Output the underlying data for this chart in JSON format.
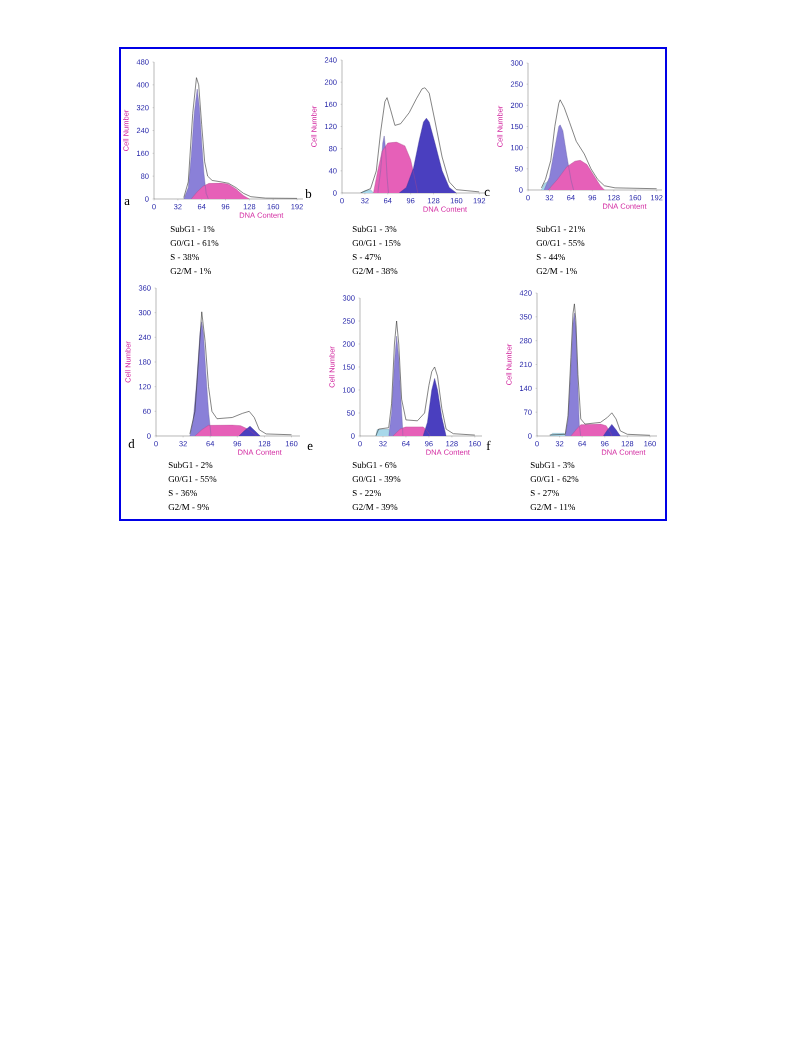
{
  "chart_data": [
    {
      "type": "area",
      "xlabel": "DNA Content",
      "ylabel": "Cell Number",
      "xlim": [
        0,
        200
      ],
      "xticks": [
        0,
        32,
        64,
        96,
        128,
        160,
        192
      ],
      "ylim": [
        0,
        480
      ],
      "yticks": [
        0,
        80,
        160,
        240,
        320,
        400,
        480
      ],
      "series": [
        {
          "color": "#8a80d8",
          "x": [
            40,
            46,
            50,
            54,
            58,
            61,
            64,
            67,
            70,
            73
          ],
          "values": [
            0,
            40,
            150,
            300,
            385,
            320,
            200,
            90,
            20,
            0
          ]
        },
        {
          "color": "#e660b8",
          "x": [
            50,
            58,
            66,
            74,
            90,
            100,
            110,
            120,
            128
          ],
          "values": [
            0,
            25,
            45,
            55,
            56,
            52,
            35,
            12,
            0
          ]
        },
        {
          "type": "line",
          "color": "#333333",
          "x": [
            40,
            46,
            52,
            57,
            60,
            64,
            68,
            72,
            78,
            90,
            100,
            110,
            120,
            130,
            150,
            192
          ],
          "values": [
            5,
            60,
            300,
            425,
            400,
            260,
            130,
            80,
            65,
            60,
            55,
            40,
            20,
            8,
            3,
            2
          ]
        }
      ],
      "annotations": [
        "a",
        "SubG1 - 1%",
        "G0/G1 - 61%",
        "S - 38%",
        "G2/M - 1%"
      ]
    },
    {
      "type": "area",
      "xlabel": "DNA Content",
      "ylabel": "Cell Number",
      "xlim": [
        0,
        200
      ],
      "xticks": [
        0,
        32,
        64,
        96,
        128,
        160,
        192
      ],
      "ylim": [
        0,
        240
      ],
      "yticks": [
        0,
        40,
        80,
        120,
        160,
        200,
        240
      ],
      "series": [
        {
          "color": "#a8d8ea",
          "x": [
            26,
            32,
            40,
            44
          ],
          "values": [
            0,
            4,
            6,
            0
          ]
        },
        {
          "color": "#8a80d8",
          "x": [
            50,
            54,
            57,
            59,
            61,
            63,
            65
          ],
          "values": [
            0,
            40,
            90,
            103,
            80,
            30,
            0
          ]
        },
        {
          "color": "#e660b8",
          "x": [
            44,
            50,
            56,
            64,
            76,
            88,
            96,
            102,
            106
          ],
          "values": [
            0,
            40,
            75,
            90,
            92,
            85,
            60,
            25,
            0
          ]
        },
        {
          "color": "#4a3fbf",
          "x": [
            80,
            90,
            100,
            108,
            114,
            118,
            122,
            130,
            140,
            150,
            160
          ],
          "values": [
            0,
            10,
            45,
            95,
            128,
            135,
            128,
            90,
            40,
            10,
            0
          ]
        },
        {
          "type": "line",
          "color": "#333333",
          "x": [
            26,
            40,
            48,
            54,
            60,
            63,
            68,
            74,
            82,
            94,
            104,
            112,
            116,
            122,
            130,
            140,
            150,
            160,
            192
          ],
          "values": [
            0,
            8,
            40,
            110,
            165,
            172,
            150,
            122,
            125,
            145,
            170,
            188,
            190,
            180,
            130,
            65,
            20,
            6,
            2
          ]
        }
      ],
      "annotations": [
        "b",
        "SubG1 - 3%",
        "G0/G1 - 15%",
        "S - 47%",
        "G2/M - 38%"
      ]
    },
    {
      "type": "area",
      "xlabel": "DNA Content",
      "ylabel": "Cell Number",
      "xlim": [
        0,
        200
      ],
      "xticks": [
        0,
        32,
        64,
        96,
        128,
        160,
        192
      ],
      "ylim": [
        0,
        300
      ],
      "yticks": [
        0,
        50,
        100,
        150,
        200,
        250,
        300
      ],
      "series": [
        {
          "color": "#a8d8ea",
          "x": [
            20,
            24,
            30,
            34
          ],
          "values": [
            0,
            15,
            20,
            0
          ]
        },
        {
          "color": "#8a80d8",
          "x": [
            24,
            32,
            40,
            46,
            48,
            52,
            58,
            64,
            68
          ],
          "values": [
            0,
            30,
            100,
            150,
            154,
            140,
            80,
            25,
            0
          ]
        },
        {
          "color": "#e660b8",
          "x": [
            30,
            44,
            58,
            70,
            78,
            88,
            98,
            108,
            114
          ],
          "values": [
            0,
            25,
            55,
            68,
            70,
            60,
            35,
            10,
            0
          ]
        },
        {
          "type": "line",
          "color": "#333333",
          "x": [
            20,
            26,
            34,
            40,
            46,
            48,
            54,
            62,
            72,
            84,
            94,
            104,
            114,
            130,
            192
          ],
          "values": [
            5,
            25,
            70,
            150,
            205,
            213,
            195,
            160,
            115,
            85,
            50,
            25,
            10,
            5,
            3
          ]
        }
      ],
      "annotations": [
        "c",
        "SubG1 - 21%",
        "G0/G1 - 55%",
        "S - 44%",
        "G2/M - 1%"
      ]
    },
    {
      "type": "area",
      "xlabel": "DNA Content",
      "ylabel": "Cell Number",
      "xlim": [
        0,
        170
      ],
      "xticks": [
        0,
        32,
        64,
        96,
        128,
        160
      ],
      "ylim": [
        0,
        360
      ],
      "yticks": [
        0,
        60,
        120,
        180,
        240,
        300,
        360
      ],
      "series": [
        {
          "color": "#8a80d8",
          "x": [
            40,
            44,
            48,
            52,
            54,
            56,
            59,
            62,
            65
          ],
          "values": [
            0,
            40,
            130,
            250,
            278,
            250,
            150,
            60,
            0
          ]
        },
        {
          "color": "#e660b8",
          "x": [
            46,
            54,
            62,
            90,
            100,
            110,
            119
          ],
          "values": [
            0,
            15,
            26,
            27,
            25,
            15,
            0
          ]
        },
        {
          "color": "#4a3fbf",
          "x": [
            98,
            104,
            111,
            117,
            123
          ],
          "values": [
            0,
            12,
            24,
            12,
            0
          ]
        },
        {
          "type": "line",
          "color": "#333333",
          "x": [
            40,
            46,
            50,
            54,
            58,
            62,
            66,
            72,
            90,
            102,
            110,
            116,
            122,
            130,
            160
          ],
          "values": [
            5,
            60,
            180,
            302,
            230,
            120,
            60,
            42,
            45,
            55,
            60,
            45,
            15,
            5,
            3
          ]
        }
      ],
      "annotations": [
        "d",
        "SubG1 - 2%",
        "G0/G1 - 55%",
        "S - 36%",
        "G2/M - 9%"
      ]
    },
    {
      "type": "area",
      "xlabel": "DNA Content",
      "ylabel": "Cell Number",
      "xlim": [
        0,
        170
      ],
      "xticks": [
        0,
        32,
        64,
        96,
        128,
        160
      ],
      "ylim": [
        0,
        300
      ],
      "yticks": [
        0,
        50,
        100,
        150,
        200,
        250,
        300
      ],
      "series": [
        {
          "color": "#a8d8ea",
          "x": [
            22,
            24,
            40,
            44
          ],
          "values": [
            0,
            14,
            15,
            0
          ]
        },
        {
          "color": "#8a80d8",
          "x": [
            40,
            44,
            48,
            51,
            54,
            57,
            60
          ],
          "values": [
            0,
            50,
            160,
            217,
            170,
            80,
            0
          ]
        },
        {
          "color": "#e660b8",
          "x": [
            46,
            56,
            64,
            88,
            94,
            98
          ],
          "values": [
            0,
            15,
            20,
            20,
            10,
            0
          ]
        },
        {
          "color": "#4a3fbf",
          "x": [
            88,
            94,
            100,
            104,
            108,
            114,
            120
          ],
          "values": [
            0,
            30,
            100,
            125,
            100,
            40,
            0
          ]
        },
        {
          "type": "line",
          "color": "#333333",
          "x": [
            22,
            26,
            40,
            44,
            48,
            51,
            54,
            58,
            64,
            80,
            90,
            96,
            100,
            104,
            108,
            114,
            120,
            130,
            160
          ],
          "values": [
            0,
            15,
            18,
            70,
            200,
            250,
            200,
            80,
            35,
            33,
            50,
            110,
            140,
            150,
            130,
            60,
            15,
            5,
            2
          ]
        }
      ],
      "annotations": [
        "e",
        "SubG1 - 6%",
        "G0/G1 - 39%",
        "S - 22%",
        "G2/M - 39%"
      ]
    },
    {
      "type": "area",
      "xlabel": "DNA Content",
      "ylabel": "Cell Number",
      "xlim": [
        0,
        170
      ],
      "xticks": [
        0,
        32,
        64,
        96,
        128,
        160
      ],
      "ylim": [
        0,
        420
      ],
      "yticks": [
        0,
        70,
        140,
        210,
        280,
        350,
        420
      ],
      "series": [
        {
          "color": "#a8d8ea",
          "x": [
            18,
            22,
            38,
            42
          ],
          "values": [
            0,
            8,
            8,
            0
          ]
        },
        {
          "color": "#8a80d8",
          "x": [
            40,
            44,
            48,
            51,
            53,
            55,
            57,
            60,
            62
          ],
          "values": [
            0,
            50,
            200,
            330,
            361,
            320,
            200,
            30,
            0
          ]
        },
        {
          "color": "#e660b8",
          "x": [
            48,
            56,
            62,
            90,
            98,
            104,
            106
          ],
          "values": [
            0,
            20,
            33,
            35,
            30,
            10,
            0
          ]
        },
        {
          "color": "#4a3fbf",
          "x": [
            94,
            100,
            106,
            112,
            118
          ],
          "values": [
            0,
            18,
            34,
            18,
            0
          ]
        },
        {
          "type": "line",
          "color": "#333333",
          "x": [
            18,
            40,
            44,
            48,
            51,
            53,
            55,
            58,
            62,
            68,
            90,
            100,
            106,
            112,
            118,
            128,
            160
          ],
          "values": [
            3,
            5,
            60,
            230,
            360,
            388,
            340,
            180,
            50,
            35,
            40,
            55,
            68,
            50,
            15,
            5,
            2
          ]
        }
      ],
      "annotations": [
        "f",
        "SubG1 - 3%",
        "G0/G1 - 62%",
        "S - 27%",
        "G2/M - 11%"
      ]
    }
  ]
}
